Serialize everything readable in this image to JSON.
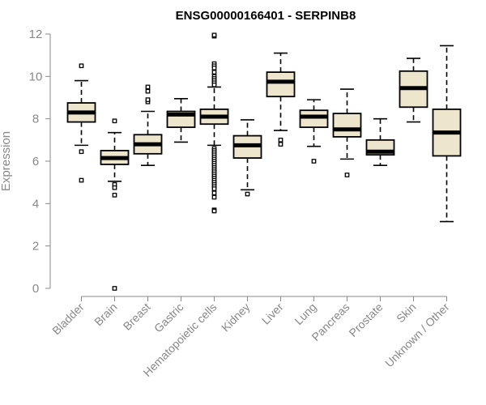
{
  "chart_data": {
    "type": "boxplot",
    "title": "ENSG00000166401 - SERPINB8",
    "xlabel": "",
    "ylabel": "Expression",
    "ylim": [
      0,
      12
    ],
    "yticks": [
      0,
      2,
      4,
      6,
      8,
      10,
      12
    ],
    "box_fill": "#ede6cd",
    "box_stroke": "#000000",
    "axis_color": "#888888",
    "categories": [
      "Bladder",
      "Brain",
      "Breast",
      "Gastric",
      "Hematopoietic cells",
      "Kidney",
      "Liver",
      "Lung",
      "Pancreas",
      "Prostate",
      "Skin",
      "Unknown / Other"
    ],
    "boxes": [
      {
        "category": "Bladder",
        "min": 6.75,
        "q1": 7.85,
        "median": 8.3,
        "q3": 8.75,
        "max": 9.8,
        "outliers": [
          10.5,
          6.45,
          5.1
        ]
      },
      {
        "category": "Brain",
        "min": 5.05,
        "q1": 5.85,
        "median": 6.15,
        "q3": 6.5,
        "max": 7.35,
        "outliers": [
          7.9,
          4.9,
          4.75,
          4.4,
          0.0
        ]
      },
      {
        "category": "Breast",
        "min": 5.8,
        "q1": 6.35,
        "median": 6.8,
        "q3": 7.25,
        "max": 8.35,
        "outliers": [
          8.8,
          8.9,
          9.3,
          9.5
        ]
      },
      {
        "category": "Gastric",
        "min": 6.9,
        "q1": 7.6,
        "median": 8.2,
        "q3": 8.35,
        "max": 8.95,
        "outliers": []
      },
      {
        "category": "Hematopoietic cells",
        "min": 6.75,
        "q1": 7.75,
        "median": 8.1,
        "q3": 8.45,
        "max": 9.5,
        "outliers": [
          11.9,
          11.95,
          10.6,
          10.5,
          10.4,
          10.2,
          10.0,
          9.9,
          9.8,
          9.7,
          9.6,
          6.6,
          6.5,
          6.4,
          6.3,
          6.2,
          6.1,
          6.0,
          5.9,
          5.8,
          5.7,
          5.6,
          5.5,
          5.4,
          5.3,
          5.2,
          5.1,
          5.0,
          4.9,
          4.8,
          4.7,
          4.5,
          4.3,
          3.7,
          3.65
        ]
      },
      {
        "category": "Kidney",
        "min": 4.65,
        "q1": 6.15,
        "median": 6.75,
        "q3": 7.2,
        "max": 7.95,
        "outliers": [
          4.45
        ]
      },
      {
        "category": "Liver",
        "min": 7.45,
        "q1": 9.05,
        "median": 9.75,
        "q3": 10.2,
        "max": 11.1,
        "outliers": [
          7.0,
          6.8
        ]
      },
      {
        "category": "Lung",
        "min": 6.7,
        "q1": 7.6,
        "median": 8.1,
        "q3": 8.4,
        "max": 8.9,
        "outliers": [
          6.0
        ]
      },
      {
        "category": "Pancreas",
        "min": 6.1,
        "q1": 7.15,
        "median": 7.5,
        "q3": 8.25,
        "max": 9.4,
        "outliers": [
          5.35
        ]
      },
      {
        "category": "Prostate",
        "min": 5.8,
        "q1": 6.3,
        "median": 6.45,
        "q3": 7.0,
        "max": 8.0,
        "outliers": []
      },
      {
        "category": "Skin",
        "min": 7.85,
        "q1": 8.55,
        "median": 9.45,
        "q3": 10.25,
        "max": 10.85,
        "outliers": []
      },
      {
        "category": "Unknown / Other",
        "min": 3.15,
        "q1": 6.25,
        "median": 7.35,
        "q3": 8.45,
        "max": 11.45,
        "outliers": []
      }
    ]
  }
}
